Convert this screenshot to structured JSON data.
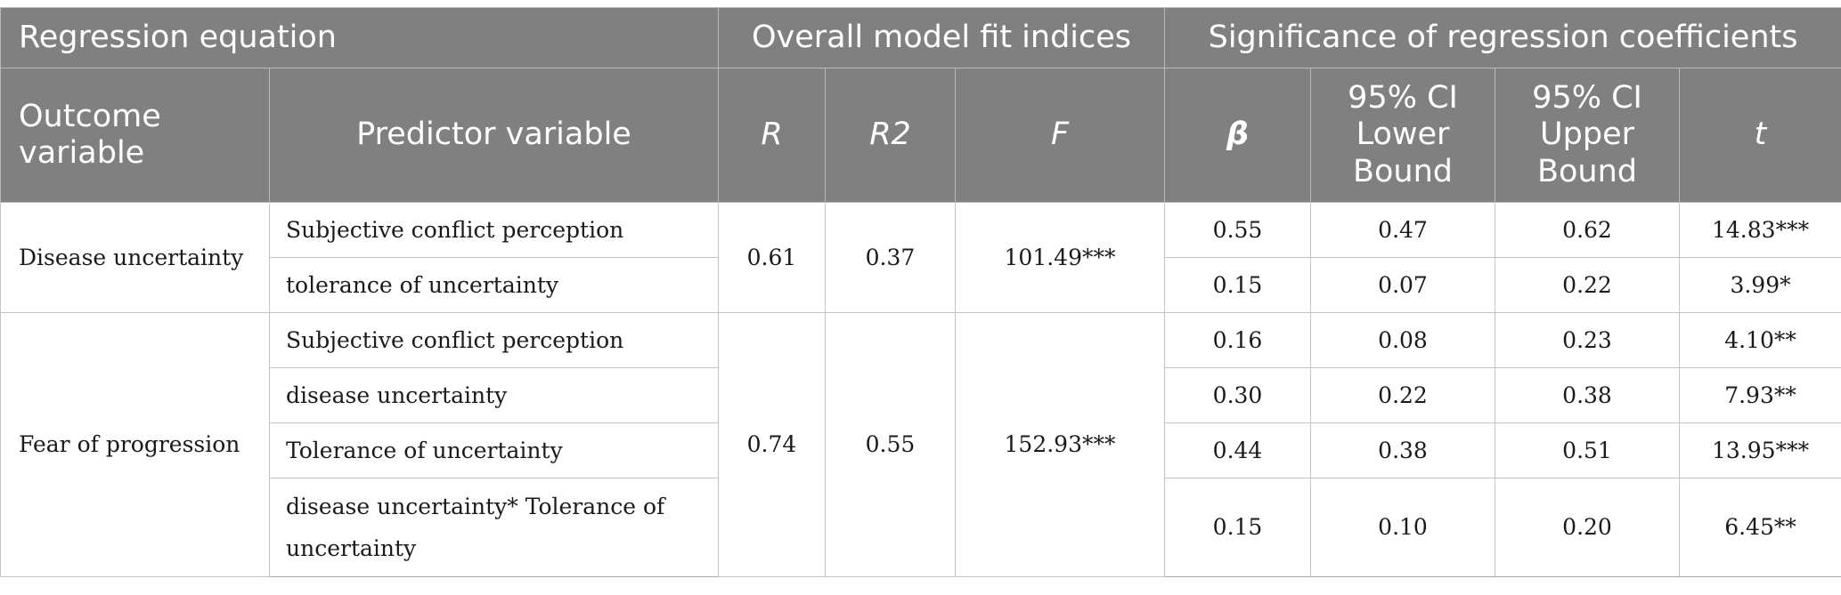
{
  "header": {
    "group_regression_equation": "Regression equation",
    "group_model_fit": "Overall model fit indices",
    "group_significance": "Significance of regression coefficients",
    "col_outcome": "Outcome variable",
    "col_predictor": "Predictor variable",
    "col_r": "R",
    "col_r2": "R2",
    "col_f": "F",
    "col_beta": "β",
    "col_ci_lower": "95% CI Lower Bound",
    "col_ci_upper": "95% CI Upper Bound",
    "col_t": "t"
  },
  "models": [
    {
      "outcome": "Disease uncertainty",
      "R": "0.61",
      "R2": "0.37",
      "F": "101.49***",
      "rows": [
        {
          "predictor": "Subjective conflict perception",
          "beta": "0.55",
          "ci_lower": "0.47",
          "ci_upper": "0.62",
          "t": "14.83***"
        },
        {
          "predictor": "tolerance of uncertainty",
          "beta": "0.15",
          "ci_lower": "0.07",
          "ci_upper": "0.22",
          "t": "3.99*"
        }
      ]
    },
    {
      "outcome": "Fear of progression",
      "R": "0.74",
      "R2": "0.55",
      "F": "152.93***",
      "rows": [
        {
          "predictor": "Subjective conflict perception",
          "beta": "0.16",
          "ci_lower": "0.08",
          "ci_upper": "0.23",
          "t": "4.10**"
        },
        {
          "predictor": "disease uncertainty",
          "beta": "0.30",
          "ci_lower": "0.22",
          "ci_upper": "0.38",
          "t": "7.93**"
        },
        {
          "predictor": "Tolerance of uncertainty",
          "beta": "0.44",
          "ci_lower": "0.38",
          "ci_upper": "0.51",
          "t": "13.95***"
        },
        {
          "predictor": "disease uncertainty* Tolerance of uncertainty",
          "beta": "0.15",
          "ci_lower": "0.10",
          "ci_upper": "0.20",
          "t": "6.45**"
        }
      ]
    }
  ]
}
